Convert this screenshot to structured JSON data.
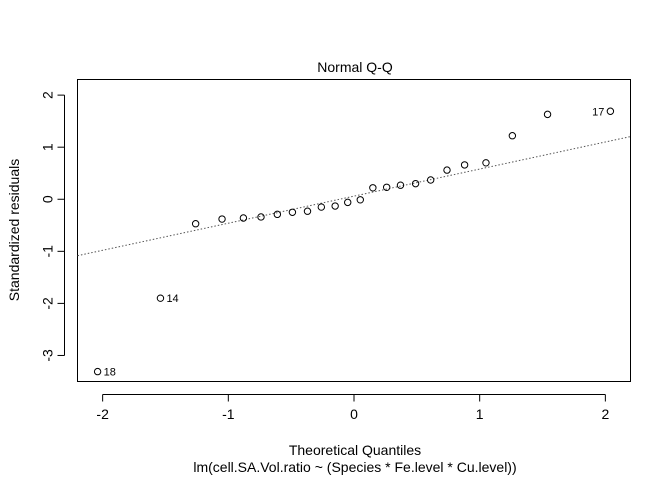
{
  "chart_data": {
    "type": "scatter",
    "title": "Normal Q-Q",
    "xlabel": "Theoretical Quantiles",
    "ylabel": "Standardized residuals",
    "subtitle": "lm(cell.SA.Vol.ratio ~ (Species * Fe.level * Cu.level))",
    "xlim": [
      -2.2,
      2.2
    ],
    "ylim": [
      -3.5,
      2.3
    ],
    "x_ticks": [
      -2,
      -1,
      0,
      1,
      2
    ],
    "x_tick_labels": [
      "-2",
      "-1",
      "0",
      "1",
      "2"
    ],
    "y_ticks": [
      -3,
      -2,
      -1,
      0,
      1,
      2
    ],
    "y_tick_labels": [
      "-3",
      "-2",
      "-1",
      "0",
      "1",
      "2"
    ],
    "grid": false,
    "points": [
      {
        "x": -2.04,
        "y": -3.31,
        "label": "18"
      },
      {
        "x": -1.54,
        "y": -1.9,
        "label": "14"
      },
      {
        "x": -1.26,
        "y": -0.47
      },
      {
        "x": -1.05,
        "y": -0.38
      },
      {
        "x": -0.88,
        "y": -0.36
      },
      {
        "x": -0.74,
        "y": -0.34
      },
      {
        "x": -0.61,
        "y": -0.29
      },
      {
        "x": -0.49,
        "y": -0.25
      },
      {
        "x": -0.37,
        "y": -0.23
      },
      {
        "x": -0.26,
        "y": -0.15
      },
      {
        "x": -0.15,
        "y": -0.13
      },
      {
        "x": -0.05,
        "y": -0.06
      },
      {
        "x": 0.05,
        "y": -0.01
      },
      {
        "x": 0.15,
        "y": 0.22
      },
      {
        "x": 0.26,
        "y": 0.23
      },
      {
        "x": 0.37,
        "y": 0.27
      },
      {
        "x": 0.49,
        "y": 0.3
      },
      {
        "x": 0.61,
        "y": 0.37
      },
      {
        "x": 0.74,
        "y": 0.56
      },
      {
        "x": 0.88,
        "y": 0.66
      },
      {
        "x": 1.05,
        "y": 0.7
      },
      {
        "x": 1.26,
        "y": 1.22
      },
      {
        "x": 1.54,
        "y": 1.63
      },
      {
        "x": 2.04,
        "y": 1.69,
        "label": "17"
      }
    ],
    "reference_line": {
      "intercept": 0.06,
      "slope": 0.52
    }
  }
}
